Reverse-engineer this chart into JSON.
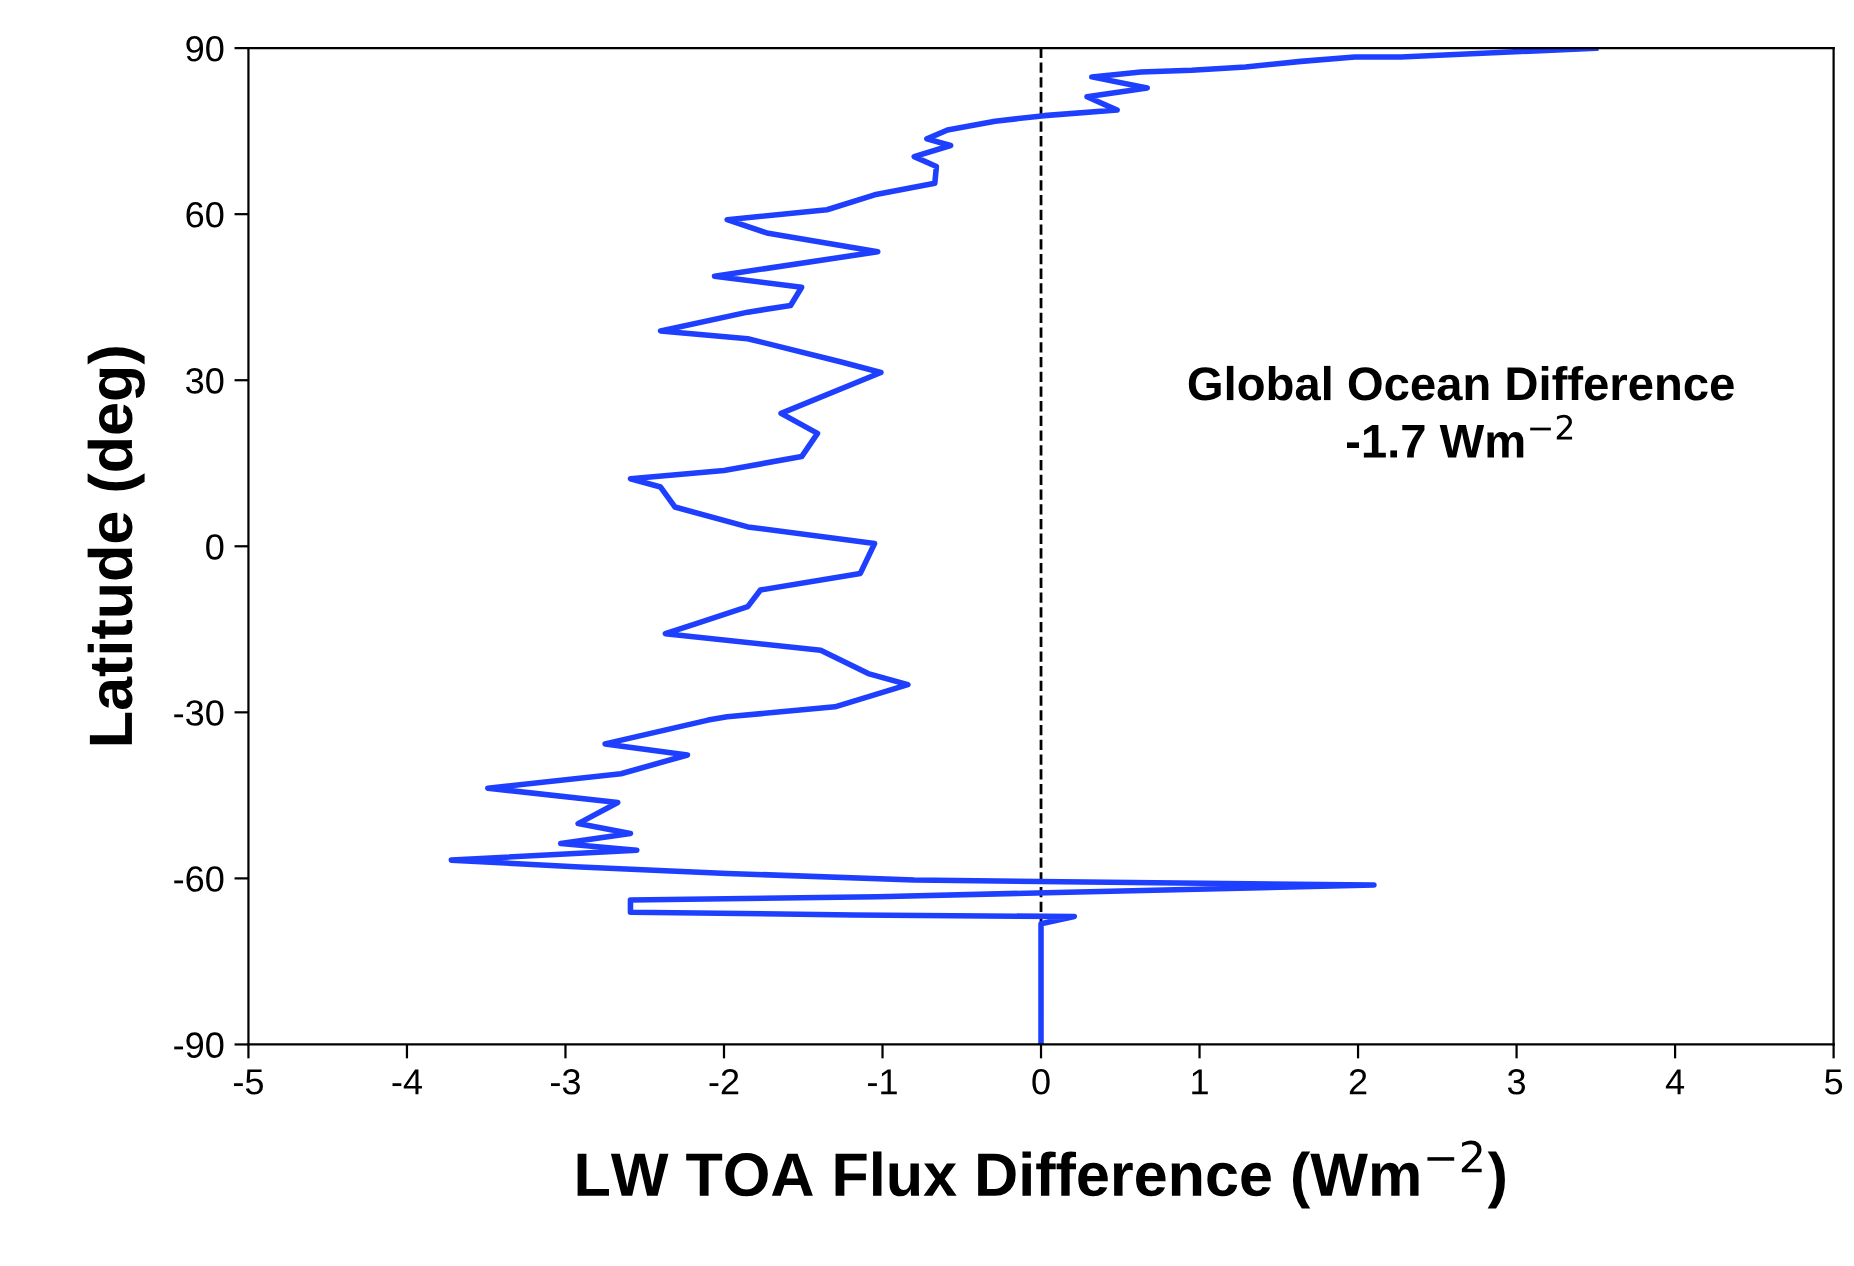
{
  "chart_data": {
    "type": "line",
    "xlabel": "LW TOA Flux Difference (Wm$^{−2}$)",
    "ylabel": "Latitude (deg)",
    "annotations": [
      "Global Ocean Difference\n-1.7 Wm$^{−2}$"
    ],
    "xlim": [
      -5,
      5
    ],
    "xticks": [
      -5,
      -4,
      -3,
      -2,
      -1,
      0,
      1,
      2,
      3,
      4,
      5
    ],
    "ylim": [
      -90,
      90
    ],
    "yticks": [
      -90,
      -60,
      -30,
      0,
      30,
      60,
      90
    ],
    "grid": false,
    "marker": "none",
    "line_style": "solid",
    "ref_lines": [
      {
        "axis": "x",
        "value": 0,
        "label": null,
        "color": "#000000",
        "line_style": "dashed"
      }
    ],
    "series": [
      {
        "color": "#1f3fff",
        "x": [
          3.5,
          2.27,
          1.98,
          1.64,
          1.29,
          0.95,
          0.63,
          0.32,
          0.67,
          0.29,
          0.48,
          0.02,
          -0.29,
          -0.59,
          -0.72,
          -0.57,
          -0.8,
          -0.66,
          -0.67,
          -1.05,
          -1.35,
          -1.98,
          -1.73,
          -1.03,
          -2.06,
          -1.51,
          -1.58,
          -1.85,
          -2.4,
          -1.85,
          -1.26,
          -1.01,
          -1.64,
          -1.41,
          -1.51,
          -2.0,
          -2.59,
          -2.4,
          -2.31,
          -1.85,
          -1.05,
          -1.14,
          -1.77,
          -1.85,
          -2.18,
          -2.37,
          -1.39,
          -1.09,
          -0.84,
          -1.3,
          -1.98,
          -2.1,
          -2.75,
          -2.23,
          -2.65,
          -3.49,
          -2.67,
          -2.92,
          -2.59,
          -3.03,
          -2.55,
          -3.72,
          -2.94,
          -1.98,
          -0.8,
          2.1,
          0.17,
          -1.03,
          -2.59,
          -2.59,
          -1.18,
          0.21,
          0,
          0
        ],
        "values": [
          90,
          88.4,
          88.4,
          87.6,
          86.6,
          86,
          85.7,
          84.8,
          82.8,
          81.2,
          78.8,
          77.8,
          76.8,
          75.2,
          73.6,
          72.4,
          70.4,
          68.6,
          65.6,
          63.5,
          60.8,
          59,
          56.6,
          53.2,
          48.8,
          46.8,
          43.5,
          42.3,
          38.9,
          37.5,
          33.3,
          31.4,
          24,
          20.4,
          16.2,
          13.7,
          12.2,
          10.7,
          7.1,
          3.5,
          0.5,
          -4.9,
          -7.9,
          -10.9,
          -14,
          -15.8,
          -18.8,
          -23,
          -25,
          -29,
          -30.8,
          -31.4,
          -35.7,
          -37.7,
          -41.1,
          -43.7,
          -46.3,
          -50.1,
          -51.9,
          -53.7,
          -54.9,
          -56.7,
          -57.9,
          -59.1,
          -60.3,
          -61.2,
          -62.5,
          -63.3,
          -63.9,
          -66.1,
          -66.6,
          -66.9,
          -68.2,
          -90
        ]
      }
    ]
  }
}
